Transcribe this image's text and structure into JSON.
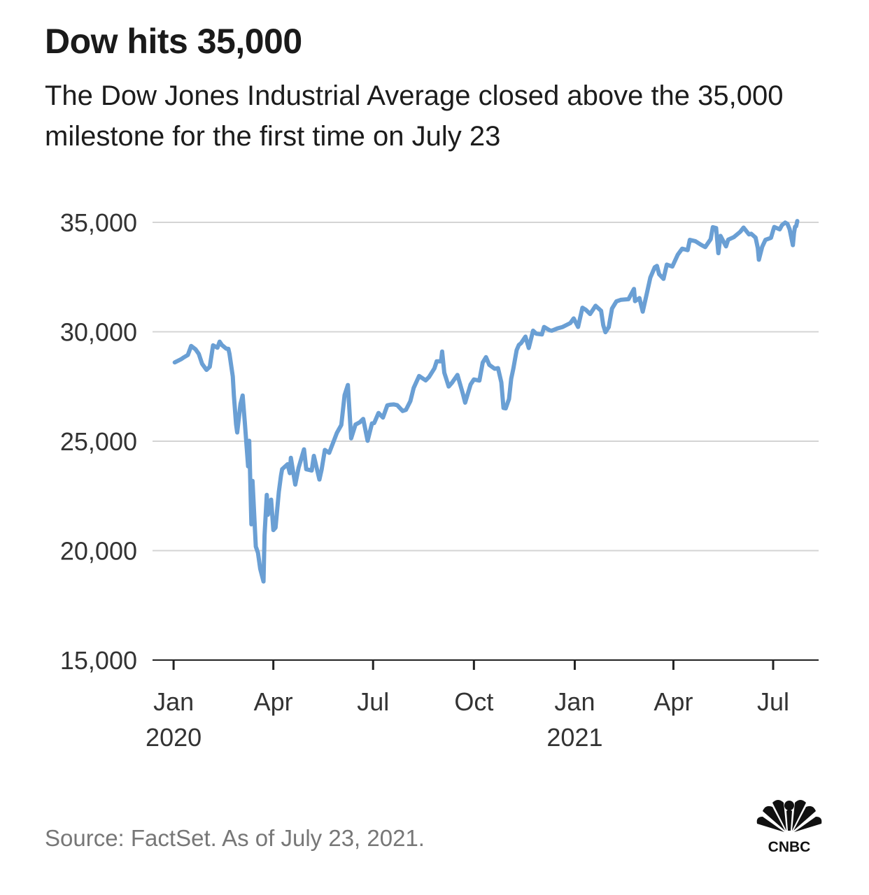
{
  "title": "Dow hits 35,000",
  "subtitle": "The Dow Jones Industrial Average closed above the 35,000 milestone for the first time on July 23",
  "source": "Source: FactSet. As of July 23, 2021.",
  "logo_text": "CNBC",
  "colors": {
    "line": "#6a9fd4",
    "grid": "#d4d4d4",
    "axis": "#222222"
  },
  "chart_data": {
    "type": "line",
    "title": "Dow hits 35,000",
    "subtitle": "The Dow Jones Industrial Average closed above the 35,000 milestone for the first time on July 23",
    "xlabel": "",
    "ylabel": "",
    "ylim": [
      15000,
      35000
    ],
    "y_ticks": [
      15000,
      20000,
      25000,
      30000,
      35000
    ],
    "y_tick_labels": [
      "15,000",
      "20,000",
      "25,000",
      "30,000",
      "35,000"
    ],
    "x_ticks": [
      {
        "date": "2020-01-01",
        "label": "Jan",
        "year": "2020"
      },
      {
        "date": "2020-04-01",
        "label": "Apr",
        "year": ""
      },
      {
        "date": "2020-07-01",
        "label": "Jul",
        "year": ""
      },
      {
        "date": "2020-10-01",
        "label": "Oct",
        "year": ""
      },
      {
        "date": "2021-01-01",
        "label": "Jan",
        "year": "2021"
      },
      {
        "date": "2021-04-01",
        "label": "Apr",
        "year": ""
      },
      {
        "date": "2021-07-01",
        "label": "Jul",
        "year": ""
      }
    ],
    "grid": true,
    "series": [
      {
        "values": [
          [
            "2020-01-02",
            28600
          ],
          [
            "2020-01-06",
            28700
          ],
          [
            "2020-01-08",
            28750
          ],
          [
            "2020-01-10",
            28820
          ],
          [
            "2020-01-14",
            28940
          ],
          [
            "2020-01-17",
            29350
          ],
          [
            "2020-01-21",
            29200
          ],
          [
            "2020-01-24",
            28990
          ],
          [
            "2020-01-27",
            28540
          ],
          [
            "2020-01-31",
            28260
          ],
          [
            "2020-02-03",
            28400
          ],
          [
            "2020-02-06",
            29380
          ],
          [
            "2020-02-10",
            29270
          ],
          [
            "2020-02-12",
            29550
          ],
          [
            "2020-02-14",
            29400
          ],
          [
            "2020-02-18",
            29230
          ],
          [
            "2020-02-20",
            29220
          ],
          [
            "2020-02-21",
            28990
          ],
          [
            "2020-02-24",
            27960
          ],
          [
            "2020-02-25",
            27080
          ],
          [
            "2020-02-27",
            25770
          ],
          [
            "2020-02-28",
            25400
          ],
          [
            "2020-03-02",
            26700
          ],
          [
            "2020-03-04",
            27090
          ],
          [
            "2020-03-06",
            25860
          ],
          [
            "2020-03-09",
            23850
          ],
          [
            "2020-03-10",
            25020
          ],
          [
            "2020-03-12",
            21200
          ],
          [
            "2020-03-13",
            23190
          ],
          [
            "2020-03-16",
            20190
          ],
          [
            "2020-03-18",
            19900
          ],
          [
            "2020-03-20",
            19170
          ],
          [
            "2020-03-23",
            18590
          ],
          [
            "2020-03-24",
            20700
          ],
          [
            "2020-03-26",
            22550
          ],
          [
            "2020-03-27",
            21640
          ],
          [
            "2020-03-30",
            22330
          ],
          [
            "2020-04-01",
            20940
          ],
          [
            "2020-04-03",
            21050
          ],
          [
            "2020-04-06",
            22680
          ],
          [
            "2020-04-08",
            23430
          ],
          [
            "2020-04-09",
            23720
          ],
          [
            "2020-04-14",
            23950
          ],
          [
            "2020-04-16",
            23540
          ],
          [
            "2020-04-17",
            24240
          ],
          [
            "2020-04-21",
            23020
          ],
          [
            "2020-04-24",
            23780
          ],
          [
            "2020-04-29",
            24630
          ],
          [
            "2020-05-01",
            23720
          ],
          [
            "2020-05-06",
            23660
          ],
          [
            "2020-05-08",
            24330
          ],
          [
            "2020-05-13",
            23250
          ],
          [
            "2020-05-15",
            23690
          ],
          [
            "2020-05-18",
            24600
          ],
          [
            "2020-05-22",
            24470
          ],
          [
            "2020-05-26",
            24990
          ],
          [
            "2020-05-29",
            25380
          ],
          [
            "2020-06-02",
            25740
          ],
          [
            "2020-06-05",
            27110
          ],
          [
            "2020-06-08",
            27570
          ],
          [
            "2020-06-11",
            25130
          ],
          [
            "2020-06-15",
            25760
          ],
          [
            "2020-06-19",
            25870
          ],
          [
            "2020-06-22",
            26020
          ],
          [
            "2020-06-26",
            25020
          ],
          [
            "2020-06-30",
            25810
          ],
          [
            "2020-07-02",
            25830
          ],
          [
            "2020-07-06",
            26290
          ],
          [
            "2020-07-10",
            26080
          ],
          [
            "2020-07-14",
            26640
          ],
          [
            "2020-07-17",
            26670
          ],
          [
            "2020-07-20",
            26680
          ],
          [
            "2020-07-23",
            26650
          ],
          [
            "2020-07-28",
            26380
          ],
          [
            "2020-07-31",
            26430
          ],
          [
            "2020-08-04",
            26830
          ],
          [
            "2020-08-07",
            27430
          ],
          [
            "2020-08-12",
            27980
          ],
          [
            "2020-08-18",
            27780
          ],
          [
            "2020-08-21",
            27930
          ],
          [
            "2020-08-26",
            28330
          ],
          [
            "2020-08-28",
            28650
          ],
          [
            "2020-09-01",
            28650
          ],
          [
            "2020-09-02",
            29100
          ],
          [
            "2020-09-04",
            28130
          ],
          [
            "2020-09-08",
            27500
          ],
          [
            "2020-09-11",
            27670
          ],
          [
            "2020-09-16",
            28030
          ],
          [
            "2020-09-21",
            27150
          ],
          [
            "2020-09-23",
            26760
          ],
          [
            "2020-09-28",
            27590
          ],
          [
            "2020-10-01",
            27820
          ],
          [
            "2020-10-06",
            27770
          ],
          [
            "2020-10-09",
            28590
          ],
          [
            "2020-10-12",
            28840
          ],
          [
            "2020-10-15",
            28490
          ],
          [
            "2020-10-20",
            28310
          ],
          [
            "2020-10-23",
            28340
          ],
          [
            "2020-10-26",
            27690
          ],
          [
            "2020-10-28",
            26520
          ],
          [
            "2020-10-30",
            26500
          ],
          [
            "2020-11-02",
            26930
          ],
          [
            "2020-11-04",
            27850
          ],
          [
            "2020-11-06",
            28320
          ],
          [
            "2020-11-09",
            29160
          ],
          [
            "2020-11-11",
            29400
          ],
          [
            "2020-11-13",
            29480
          ],
          [
            "2020-11-17",
            29780
          ],
          [
            "2020-11-20",
            29260
          ],
          [
            "2020-11-24",
            30050
          ],
          [
            "2020-11-27",
            29910
          ],
          [
            "2020-12-02",
            29880
          ],
          [
            "2020-12-04",
            30220
          ],
          [
            "2020-12-09",
            30070
          ],
          [
            "2020-12-11",
            30050
          ],
          [
            "2020-12-16",
            30150
          ],
          [
            "2020-12-21",
            30220
          ],
          [
            "2020-12-28",
            30400
          ],
          [
            "2020-12-31",
            30610
          ],
          [
            "2021-01-04",
            30220
          ],
          [
            "2021-01-08",
            31100
          ],
          [
            "2021-01-11",
            31010
          ],
          [
            "2021-01-15",
            30810
          ],
          [
            "2021-01-20",
            31190
          ],
          [
            "2021-01-25",
            30960
          ],
          [
            "2021-01-27",
            30300
          ],
          [
            "2021-01-29",
            29980
          ],
          [
            "2021-02-01",
            30210
          ],
          [
            "2021-02-04",
            31060
          ],
          [
            "2021-02-08",
            31390
          ],
          [
            "2021-02-12",
            31460
          ],
          [
            "2021-02-19",
            31490
          ],
          [
            "2021-02-24",
            31960
          ],
          [
            "2021-02-25",
            31400
          ],
          [
            "2021-03-01",
            31540
          ],
          [
            "2021-03-04",
            30920
          ],
          [
            "2021-03-08",
            31800
          ],
          [
            "2021-03-11",
            32480
          ],
          [
            "2021-03-15",
            32950
          ],
          [
            "2021-03-17",
            33010
          ],
          [
            "2021-03-19",
            32630
          ],
          [
            "2021-03-23",
            32420
          ],
          [
            "2021-03-26",
            33070
          ],
          [
            "2021-03-31",
            32980
          ],
          [
            "2021-04-05",
            33520
          ],
          [
            "2021-04-09",
            33800
          ],
          [
            "2021-04-14",
            33730
          ],
          [
            "2021-04-16",
            34200
          ],
          [
            "2021-04-21",
            34140
          ],
          [
            "2021-04-26",
            33980
          ],
          [
            "2021-04-30",
            33870
          ],
          [
            "2021-05-05",
            34230
          ],
          [
            "2021-05-07",
            34780
          ],
          [
            "2021-05-10",
            34740
          ],
          [
            "2021-05-12",
            33590
          ],
          [
            "2021-05-14",
            34380
          ],
          [
            "2021-05-19",
            33900
          ],
          [
            "2021-05-21",
            34210
          ],
          [
            "2021-05-26",
            34320
          ],
          [
            "2021-06-01",
            34570
          ],
          [
            "2021-06-04",
            34760
          ],
          [
            "2021-06-09",
            34450
          ],
          [
            "2021-06-11",
            34480
          ],
          [
            "2021-06-15",
            34300
          ],
          [
            "2021-06-17",
            33820
          ],
          [
            "2021-06-18",
            33290
          ],
          [
            "2021-06-21",
            33880
          ],
          [
            "2021-06-24",
            34200
          ],
          [
            "2021-06-29",
            34290
          ],
          [
            "2021-07-01",
            34630
          ],
          [
            "2021-07-02",
            34790
          ],
          [
            "2021-07-07",
            34680
          ],
          [
            "2021-07-09",
            34870
          ],
          [
            "2021-07-12",
            34990
          ],
          [
            "2021-07-14",
            34930
          ],
          [
            "2021-07-16",
            34690
          ],
          [
            "2021-07-19",
            33960
          ],
          [
            "2021-07-20",
            34510
          ],
          [
            "2021-07-21",
            34800
          ],
          [
            "2021-07-22",
            34820
          ],
          [
            "2021-07-23",
            35060
          ]
        ]
      }
    ]
  }
}
